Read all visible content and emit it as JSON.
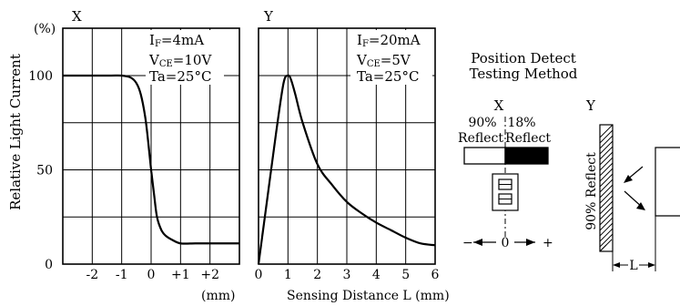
{
  "chart_data": [
    {
      "type": "line",
      "panel_label": "X",
      "ylabel": "Relative Light Current",
      "yunit": "(%)",
      "xunit": "(mm)",
      "xlim": [
        -3,
        3
      ],
      "ylim": [
        0,
        120
      ],
      "xticks": [
        "-2",
        "-1",
        "0",
        "+1",
        "+2"
      ],
      "yticks": [
        "0",
        "50",
        "100"
      ],
      "conditions": [
        {
          "main": "I",
          "sub": "F",
          "rest": "=4mA"
        },
        {
          "main": "V",
          "sub": "CE",
          "rest": "=10V"
        },
        {
          "main": "Ta=25°C",
          "sub": "",
          "rest": ""
        }
      ],
      "series": [
        {
          "x": [
            -3,
            -1.5,
            -1,
            -0.7,
            -0.5,
            -0.35,
            -0.2,
            -0.1,
            0,
            0.1,
            0.2,
            0.35,
            0.5,
            0.7,
            1,
            1.5,
            2,
            3
          ],
          "y": [
            100,
            100,
            100,
            99,
            96,
            90,
            78,
            65,
            50,
            37,
            25,
            18,
            15,
            13,
            11,
            11,
            11,
            11
          ]
        }
      ]
    },
    {
      "type": "line",
      "panel_label": "Y",
      "xlabel": "Sensing Distance L (mm)",
      "xlim": [
        0,
        6
      ],
      "ylim": [
        0,
        120
      ],
      "xticks": [
        "0",
        "1",
        "2",
        "3",
        "4",
        "5",
        "6"
      ],
      "conditions": [
        {
          "main": "I",
          "sub": "F",
          "rest": "=20mA"
        },
        {
          "main": "V",
          "sub": "CE",
          "rest": "=5V"
        },
        {
          "main": "Ta=25°C",
          "sub": "",
          "rest": ""
        }
      ],
      "series": [
        {
          "x": [
            0,
            0.3,
            0.6,
            0.85,
            1.0,
            1.1,
            1.25,
            1.5,
            2,
            2.5,
            3,
            3.5,
            4,
            4.5,
            5,
            5.5,
            6
          ],
          "y": [
            0,
            35,
            70,
            96,
            100,
            98,
            90,
            75,
            53,
            42,
            33,
            27,
            22,
            18,
            14,
            11,
            10
          ]
        }
      ]
    }
  ],
  "method": {
    "title_line1": "Position Detect",
    "title_line2": "Testing Method",
    "x_label": "X",
    "y_label": "Y",
    "left_pct": "90%",
    "left_word": "Reflect",
    "right_pct": "18%",
    "right_word": "Reflect",
    "minus": "−",
    "zero": "0",
    "plus": "+",
    "side_text": "90% Reflect",
    "dist_label": "L"
  },
  "colors": {
    "ink": "#000000",
    "background": "#ffffff"
  }
}
